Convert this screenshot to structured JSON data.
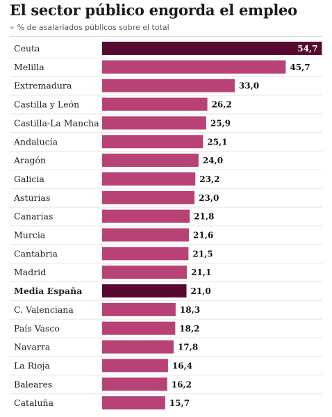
{
  "title": "El sector público engorda el empleo",
  "subtitle": "% de asalariados públicos sobre el total",
  "colors": {
    "bar": "#b84276",
    "highlight": "#560a32",
    "background": "#ffffff"
  },
  "chart_data": {
    "type": "bar",
    "orientation": "horizontal",
    "title": "El sector público engorda el empleo",
    "subtitle": "% de asalariados públicos sobre el total",
    "xlim": [
      0,
      56
    ],
    "grid": false,
    "categories": [
      "Ceuta",
      "Melilla",
      "Extremadura",
      "Castilla y León",
      "Castilla-La Mancha",
      "Andalucía",
      "Aragón",
      "Galicia",
      "Asturias",
      "Canarias",
      "Murcia",
      "Cantabria",
      "Madrid",
      "Media España",
      "C. Valenciana",
      "País Vasco",
      "Navarra",
      "La Rioja",
      "Baleares",
      "Cataluña"
    ],
    "values": [
      54.7,
      45.7,
      33.0,
      26.2,
      25.9,
      25.1,
      24.0,
      23.2,
      23.0,
      21.8,
      21.6,
      21.5,
      21.1,
      21.0,
      18.3,
      18.2,
      17.8,
      16.4,
      16.2,
      15.7
    ],
    "value_labels": [
      "54,7",
      "45,7",
      "33,0",
      "26,2",
      "25,9",
      "25,1",
      "24,0",
      "23,2",
      "23,0",
      "21,8",
      "21,6",
      "21,5",
      "21,1",
      "21,0",
      "18,3",
      "18,2",
      "17,8",
      "16,4",
      "16,2",
      "15,7"
    ],
    "highlighted": [
      "Ceuta",
      "Media España"
    ],
    "bold_labels": [
      "Media España"
    ],
    "inside_labels": [
      "Ceuta"
    ]
  }
}
